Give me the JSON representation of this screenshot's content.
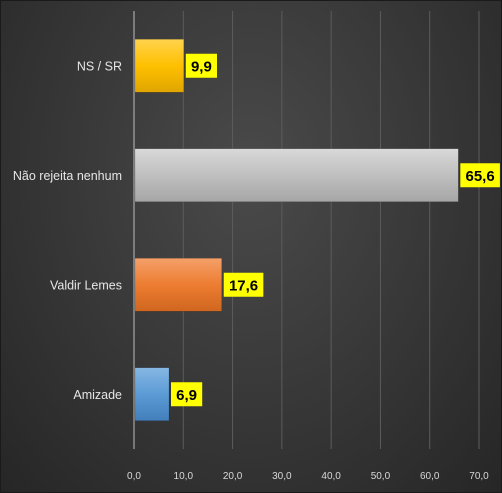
{
  "chart_data": {
    "type": "bar",
    "orientation": "horizontal",
    "categories": [
      "NS / SR",
      "Não rejeita nenhum",
      "Valdir Lemes",
      "Amizade"
    ],
    "values": [
      9.9,
      65.6,
      17.6,
      6.9
    ],
    "value_labels": [
      "9,9",
      "65,6",
      "17,6",
      "6,9"
    ],
    "bar_colors": [
      "#ffc000",
      "#bfbfbf",
      "#ed7d31",
      "#5b9bd5"
    ],
    "data_label_background": "#ffff00",
    "xlim": [
      0,
      70
    ],
    "xticks": [
      0,
      10,
      20,
      30,
      40,
      50,
      60,
      70
    ],
    "xtick_labels": [
      "0,0",
      "10,0",
      "20,0",
      "30,0",
      "40,0",
      "50,0",
      "60,0",
      "70,0"
    ],
    "grid": "vertical",
    "legend": "none",
    "background_color": "#3a3a3a"
  }
}
